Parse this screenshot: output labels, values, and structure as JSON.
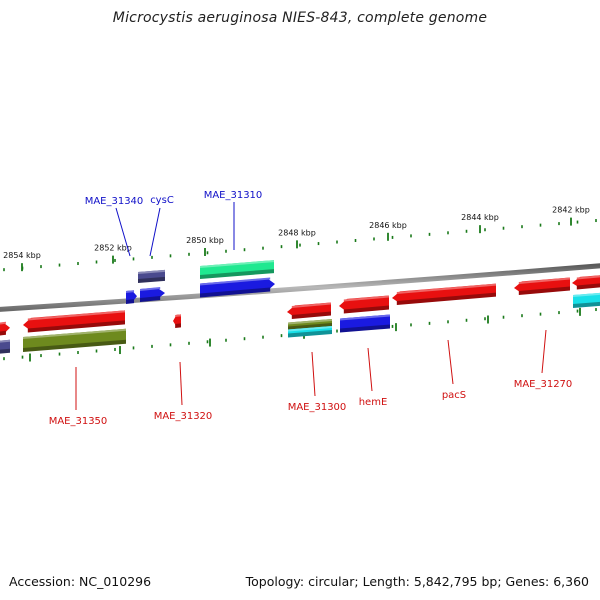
{
  "header": {
    "title": "Microcystis aeruginosa NIES-843, complete genome"
  },
  "footer": {
    "accession": "Accession: NC_010296",
    "topology": "Topology: circular; Length: 5,842,795 bp; Genes: 6,360"
  },
  "colors": {
    "backbone": "#8a8a8a",
    "ticks": "#1a7a1a",
    "forward_label": "#1010c8",
    "reverse_label": "#d01010",
    "red": "#e81010",
    "blue": "#1a1ae0",
    "navy": "#4a4a8e",
    "green": "#20e890",
    "olive": "#6e8a1e",
    "cyan": "#18e0e8"
  },
  "kbp_labels": [
    "2854 kbp",
    "2852 kbp",
    "2850 kbp",
    "2848 kbp",
    "2846 kbp",
    "2844 kbp",
    "2842 kbp"
  ],
  "forward_genes": [
    "MAE_31340",
    "cysC",
    "MAE_31310"
  ],
  "reverse_genes": [
    "MAE_31350",
    "MAE_31320",
    "MAE_31300",
    "hemE",
    "pacS",
    "MAE_31270"
  ]
}
